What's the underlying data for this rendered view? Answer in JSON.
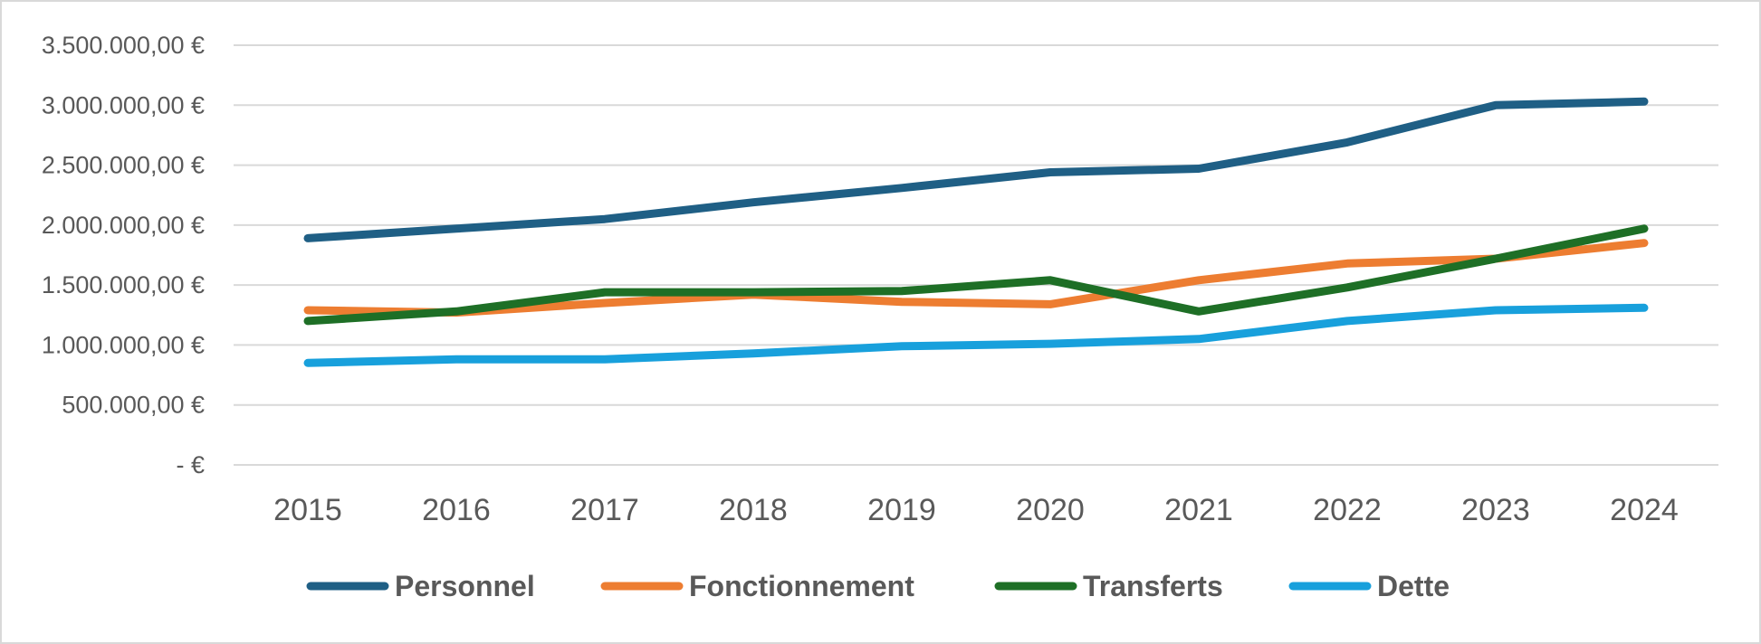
{
  "chart_data": {
    "type": "line",
    "title": "",
    "xlabel": "",
    "ylabel": "",
    "categories": [
      "2015",
      "2016",
      "2017",
      "2018",
      "2019",
      "2020",
      "2021",
      "2022",
      "2023",
      "2024"
    ],
    "ylim": [
      0,
      3500000
    ],
    "y_ticks": [
      {
        "value": 0,
        "label": "-  €"
      },
      {
        "value": 500000,
        "label": "500.000,00 €"
      },
      {
        "value": 1000000,
        "label": "1.000.000,00 €"
      },
      {
        "value": 1500000,
        "label": "1.500.000,00 €"
      },
      {
        "value": 2000000,
        "label": "2.000.000,00 €"
      },
      {
        "value": 2500000,
        "label": "2.500.000,00 €"
      },
      {
        "value": 3000000,
        "label": "3.000.000,00 €"
      },
      {
        "value": 3500000,
        "label": "3.500.000,00 €"
      }
    ],
    "grid": true,
    "legend_position": "bottom",
    "series": [
      {
        "name": "Personnel",
        "color": "#1f5f85",
        "values": [
          1890000,
          1970000,
          2050000,
          2190000,
          2310000,
          2440000,
          2470000,
          2690000,
          3000000,
          3030000
        ]
      },
      {
        "name": "Fonctionnement",
        "color": "#ed7d31",
        "values": [
          1290000,
          1270000,
          1350000,
          1420000,
          1360000,
          1340000,
          1540000,
          1680000,
          1720000,
          1850000
        ]
      },
      {
        "name": "Transferts",
        "color": "#1e6f26",
        "values": [
          1200000,
          1280000,
          1440000,
          1440000,
          1450000,
          1540000,
          1280000,
          1480000,
          1720000,
          1970000
        ]
      },
      {
        "name": "Dette",
        "color": "#18a0dc",
        "values": [
          850000,
          880000,
          880000,
          930000,
          990000,
          1010000,
          1050000,
          1200000,
          1290000,
          1310000
        ]
      }
    ]
  }
}
